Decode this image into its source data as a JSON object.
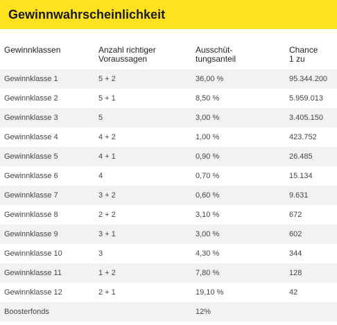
{
  "header": {
    "title": "Gewinnwahrscheinlichkeit"
  },
  "columns": {
    "col1": "Gewinnklassen",
    "col2": "Anzahl richtiger\nVoraussagen",
    "col3": "Ausschüt-\ntungsanteil",
    "col4": "Chance\n1 zu"
  },
  "rows": [
    {
      "klasse": "Gewinnklasse 1",
      "voraussagen": "5 + 2",
      "anteil": "36,00 %",
      "chance": "95.344.200"
    },
    {
      "klasse": "Gewinnklasse 2",
      "voraussagen": "5 + 1",
      "anteil": "8,50 %",
      "chance": "5.959.013"
    },
    {
      "klasse": "Gewinnklasse 3",
      "voraussagen": "5",
      "anteil": "3,00 %",
      "chance": "3.405.150"
    },
    {
      "klasse": "Gewinnklasse 4",
      "voraussagen": "4 + 2",
      "anteil": "1,00 %",
      "chance": "423.752"
    },
    {
      "klasse": "Gewinnklasse 5",
      "voraussagen": "4 + 1",
      "anteil": "0,90 %",
      "chance": "26.485"
    },
    {
      "klasse": "Gewinnklasse 6",
      "voraussagen": "4",
      "anteil": "0,70 %",
      "chance": "15.134"
    },
    {
      "klasse": "Gewinnklasse 7",
      "voraussagen": "3 + 2",
      "anteil": "0,60 %",
      "chance": "9.631"
    },
    {
      "klasse": "Gewinnklasse 8",
      "voraussagen": "2 + 2",
      "anteil": "3,10 %",
      "chance": "672"
    },
    {
      "klasse": "Gewinnklasse 9",
      "voraussagen": "3 + 1",
      "anteil": "3,00 %",
      "chance": "602"
    },
    {
      "klasse": "Gewinnklasse 10",
      "voraussagen": "3",
      "anteil": "4,30 %",
      "chance": "344"
    },
    {
      "klasse": "Gewinnklasse 11",
      "voraussagen": "1 + 2",
      "anteil": "7,80 %",
      "chance": "128"
    },
    {
      "klasse": "Gewinnklasse 12",
      "voraussagen": "2 + 1",
      "anteil": "19,10 %",
      "chance": "42"
    },
    {
      "klasse": "Boosterfonds",
      "voraussagen": "",
      "anteil": "12%",
      "chance": ""
    }
  ],
  "colors": {
    "header_bg": "#ffe21f",
    "row_shade": "#f2f2f2"
  }
}
